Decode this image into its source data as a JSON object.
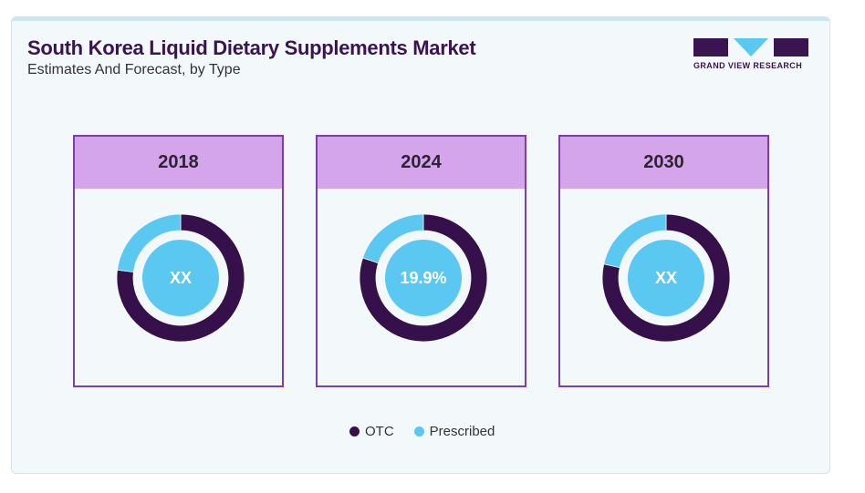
{
  "header": {
    "title": "South Korea Liquid Dietary Supplements Market",
    "subtitle": "Estimates And Forecast, by Type",
    "logo_text": "GRAND VIEW RESEARCH"
  },
  "colors": {
    "otc": "#36104a",
    "prescribed": "#5bc8f2",
    "panel_head": "#d4a5ea",
    "panel_border": "#7b3fa8"
  },
  "chart_data": {
    "type": "pie",
    "title": "South Korea Liquid Dietary Supplements Market",
    "subtitle": "Estimates And Forecast, by Type",
    "legend": [
      "OTC",
      "Prescribed"
    ],
    "legend_position": "bottom",
    "charts": [
      {
        "year": "2018",
        "center_label": "XX",
        "series": [
          {
            "name": "OTC",
            "value": 77
          },
          {
            "name": "Prescribed",
            "value": 23
          }
        ]
      },
      {
        "year": "2024",
        "center_label": "19.9%",
        "series": [
          {
            "name": "OTC",
            "value": 80.1
          },
          {
            "name": "Prescribed",
            "value": 19.9
          }
        ]
      },
      {
        "year": "2030",
        "center_label": "XX",
        "series": [
          {
            "name": "OTC",
            "value": 78.5
          },
          {
            "name": "Prescribed",
            "value": 21.5
          }
        ]
      }
    ]
  }
}
